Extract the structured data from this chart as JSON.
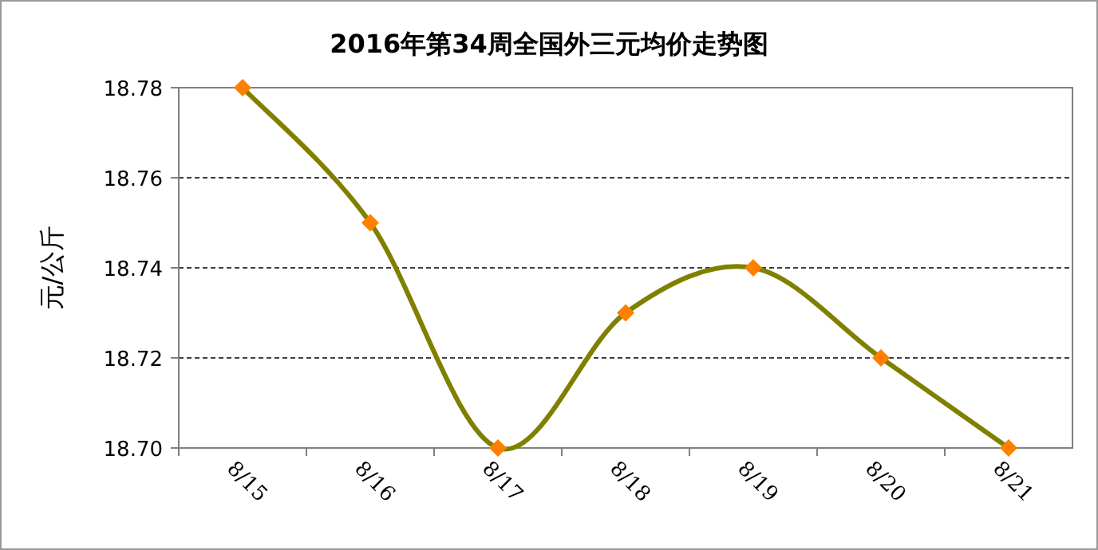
{
  "chart_data": {
    "type": "line",
    "title": "2016年第34周全国外三元均价走势图",
    "ylabel": "元/公斤",
    "categories": [
      "8/15",
      "8/16",
      "8/17",
      "8/18",
      "8/19",
      "8/20",
      "8/21"
    ],
    "series": [
      {
        "color": "#808000",
        "values": [
          18.78,
          18.75,
          18.7,
          18.73,
          18.74,
          18.72,
          18.7
        ]
      }
    ],
    "ylim": [
      18.7,
      18.78
    ],
    "yticks": [
      {
        "value": 18.7,
        "label": "18.70"
      },
      {
        "value": 18.72,
        "label": "18.72"
      },
      {
        "value": 18.74,
        "label": "18.74"
      },
      {
        "value": 18.76,
        "label": "18.76"
      },
      {
        "value": 18.78,
        "label": "18.78"
      }
    ],
    "grid": "y",
    "marker": "diamond",
    "line_style": "solid"
  }
}
